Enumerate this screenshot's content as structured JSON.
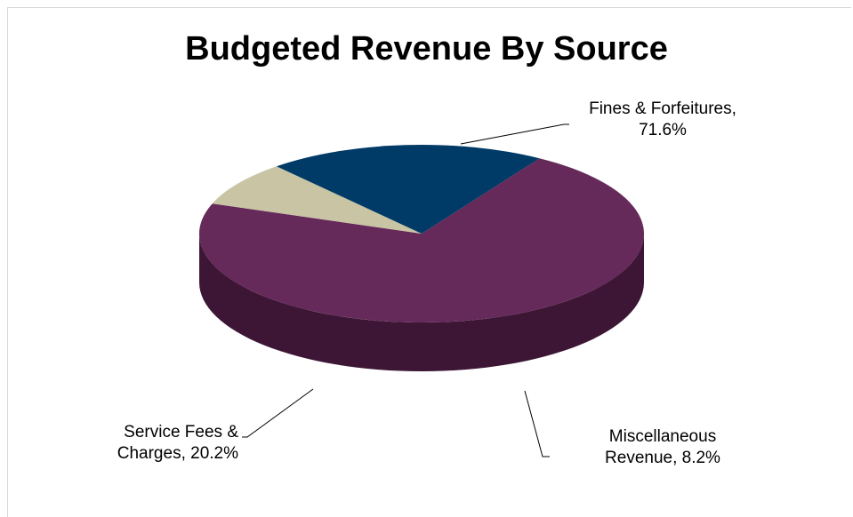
{
  "chart_data": {
    "type": "pie",
    "title": "Budgeted Revenue By Source",
    "slices": [
      {
        "name": "Fines & Forfeitures",
        "value": 71.6,
        "label_lines": [
          "Fines & Forfeitures,",
          "71.6%"
        ],
        "color": "#652a5a",
        "side_color": "#3d1636"
      },
      {
        "name": "Miscellaneous Revenue",
        "value": 8.2,
        "label_lines": [
          "Miscellaneous",
          "Revenue, 8.2%"
        ],
        "color": "#c8c4a4",
        "side_color": "#5f5c4b"
      },
      {
        "name": "Service Fees & Charges",
        "value": 20.2,
        "label_lines": [
          "Service Fees &",
          "Charges, 20.2%"
        ],
        "color": "#003a66",
        "side_color": "#00263f"
      }
    ],
    "grid": false,
    "legend": "none"
  }
}
